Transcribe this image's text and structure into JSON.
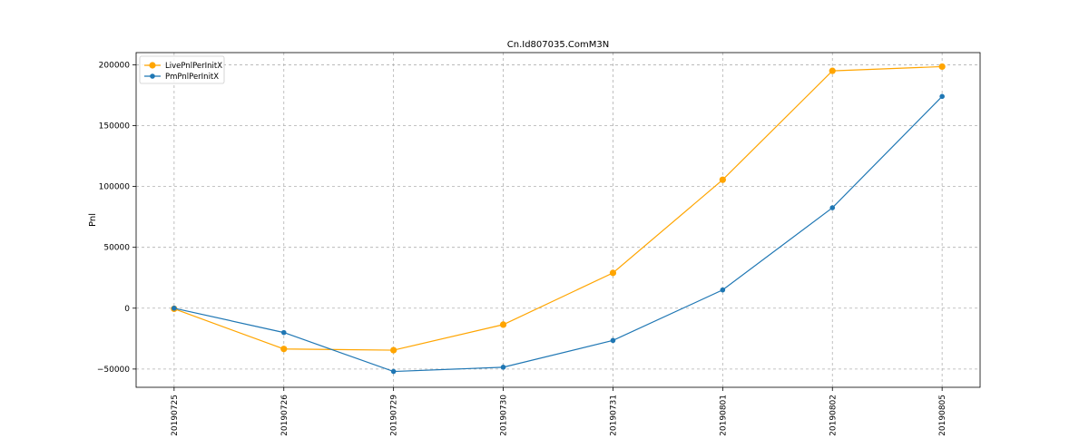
{
  "chart_data": {
    "type": "line",
    "title": "Cn.Id807035.ComM3N",
    "xlabel": "",
    "ylabel": "Pnl",
    "categories": [
      "20190725",
      "20190726",
      "20190729",
      "20190730",
      "20190731",
      "20190801",
      "20190802",
      "20190805"
    ],
    "ylim": [
      -65000,
      210000
    ],
    "yticks": [
      -50000,
      0,
      50000,
      100000,
      150000,
      200000
    ],
    "ytick_labels": [
      "−50000",
      "0",
      "50000",
      "100000",
      "150000",
      "200000"
    ],
    "grid": true,
    "legend_position": "top-left",
    "series": [
      {
        "name": "LivePnlPerInitX",
        "color": "#ffa500",
        "values": [
          -500,
          -33500,
          -34500,
          -13500,
          29000,
          105500,
          195000,
          198500
        ]
      },
      {
        "name": "PmPnlPerInitX",
        "color": "#1f77b4",
        "values": [
          0,
          -20000,
          -52000,
          -48500,
          -26500,
          15000,
          82500,
          174000
        ]
      }
    ]
  }
}
